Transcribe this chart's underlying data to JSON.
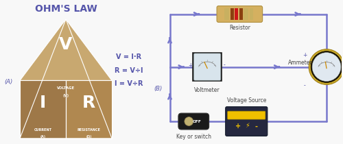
{
  "title": "OHM'S LAW",
  "title_color": "#5555aa",
  "title_fontsize": 10,
  "bg_color": "#f8f8f8",
  "formula1": "V = I·R",
  "formula2": "R = V÷I",
  "formula3": "I = V÷R",
  "formula_color": "#5555aa",
  "A_label": "(A)",
  "B_label": "(B)",
  "label_color": "#5555aa",
  "circuit_line_color": "#7777cc",
  "circuit_lw": 1.8,
  "label_fontsize": 5.5,
  "tri_top_fc": "#c8a870",
  "tri_bl_fc": "#9e7848",
  "tri_br_fc": "#b08850",
  "ammeter_outer": "#251500",
  "ammeter_inner": "#e0e8f0",
  "voltmeter_box": "#111111",
  "voltmeter_inner": "#d8e4ec",
  "battery_body": "#252840",
  "battery_top": "#f0c000",
  "switch_body": "#1a1a1a",
  "switch_knob": "#c0b070"
}
